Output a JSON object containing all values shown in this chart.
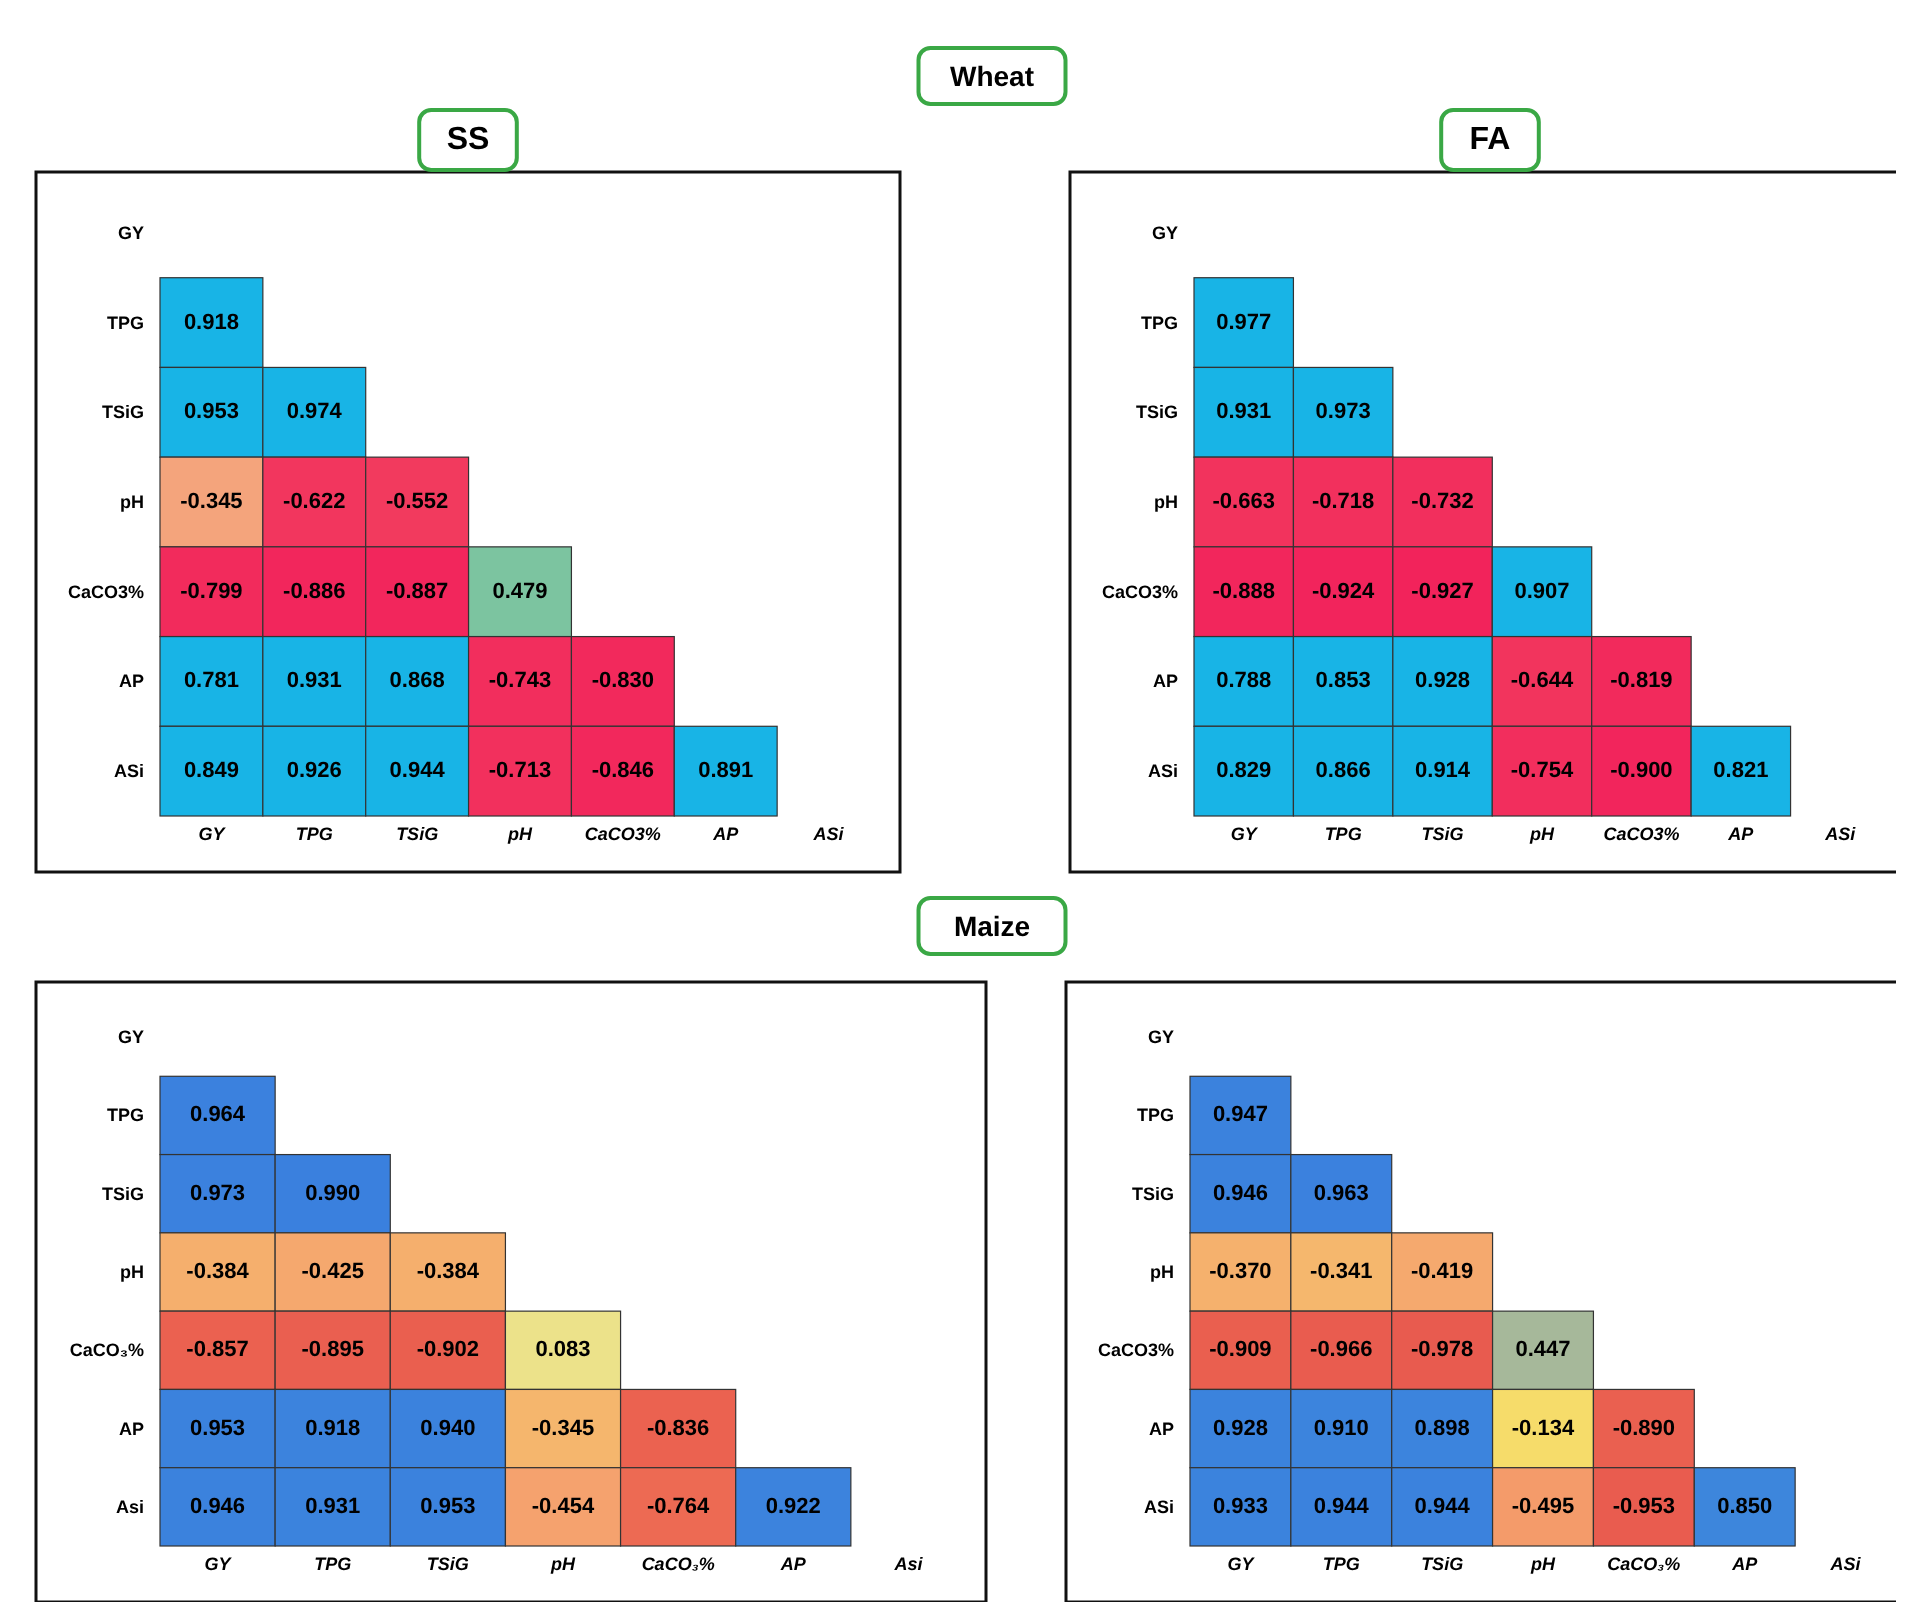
{
  "chart_data": [
    {
      "type": "heatmap",
      "title": "SS",
      "annotations": [
        "Wheat"
      ],
      "grid": false,
      "categories": [
        "GY",
        "TPG",
        "TSiG",
        "pH",
        "CaCO3%",
        "AP",
        "ASi"
      ],
      "y_categories": [
        "GY",
        "TPG",
        "TSiG",
        "pH",
        "CaCO3%",
        "AP",
        "ASi"
      ],
      "cells": [
        [
          null,
          null,
          null,
          null,
          null,
          null,
          null
        ],
        [
          0.918,
          null,
          null,
          null,
          null,
          null,
          null
        ],
        [
          0.953,
          0.974,
          null,
          null,
          null,
          null,
          null
        ],
        [
          -0.345,
          -0.622,
          -0.552,
          null,
          null,
          null,
          null
        ],
        [
          -0.799,
          -0.886,
          -0.887,
          0.479,
          null,
          null,
          null
        ],
        [
          0.781,
          0.931,
          0.868,
          -0.743,
          -0.83,
          null,
          null
        ],
        [
          0.849,
          0.926,
          0.944,
          -0.713,
          -0.846,
          0.891,
          null
        ]
      ],
      "cell_labels": [
        [
          null,
          null,
          null,
          null,
          null,
          null,
          null
        ],
        [
          "0.918",
          null,
          null,
          null,
          null,
          null,
          null
        ],
        [
          "0.953",
          "0.974",
          null,
          null,
          null,
          null,
          null
        ],
        [
          "-0.345",
          "-0.622",
          "-0.552",
          null,
          null,
          null,
          null
        ],
        [
          "-0.799",
          "-0.886",
          "-0.887",
          "0.479",
          null,
          null,
          null
        ],
        [
          "0.781",
          "0.931",
          "0.868",
          "-0.743",
          "-0.830",
          null,
          null
        ],
        [
          "0.849",
          "0.926",
          "0.944",
          "-0.713",
          "-0.846",
          "0.891",
          null
        ]
      ]
    },
    {
      "type": "heatmap",
      "title": "FA",
      "grid": false,
      "categories": [
        "GY",
        "TPG",
        "TSiG",
        "pH",
        "CaCO3%",
        "AP",
        "ASi"
      ],
      "y_categories": [
        "GY",
        "TPG",
        "TSiG",
        "pH",
        "CaCO3%",
        "AP",
        "ASi"
      ],
      "cells": [
        [
          null,
          null,
          null,
          null,
          null,
          null,
          null
        ],
        [
          0.977,
          null,
          null,
          null,
          null,
          null,
          null
        ],
        [
          0.931,
          0.973,
          null,
          null,
          null,
          null,
          null
        ],
        [
          -0.663,
          -0.718,
          -0.732,
          null,
          null,
          null,
          null
        ],
        [
          -0.888,
          -0.924,
          -0.927,
          0.907,
          null,
          null,
          null
        ],
        [
          0.788,
          0.853,
          0.928,
          -0.644,
          -0.819,
          null,
          null
        ],
        [
          0.829,
          0.866,
          0.914,
          -0.754,
          -0.9,
          0.821,
          null
        ]
      ],
      "cell_labels": [
        [
          null,
          null,
          null,
          null,
          null,
          null,
          null
        ],
        [
          "0.977",
          null,
          null,
          null,
          null,
          null,
          null
        ],
        [
          "0.931",
          "0.973",
          null,
          null,
          null,
          null,
          null
        ],
        [
          "-0.663",
          "-0.718",
          "-0.732",
          null,
          null,
          null,
          null
        ],
        [
          "-0.888",
          "-0.924",
          "-0.927",
          "0.907",
          null,
          null,
          null
        ],
        [
          "0.788",
          "0.853",
          "0.928",
          "-0.644",
          "-0.819",
          null,
          null
        ],
        [
          "0.829",
          "0.866",
          "0.914",
          "-0.754",
          "-0.900",
          "0.821",
          null
        ]
      ]
    },
    {
      "type": "heatmap",
      "annotations": [
        "Maize"
      ],
      "grid": false,
      "categories": [
        "GY",
        "TPG",
        "TSiG",
        "pH",
        "CaCO₃%",
        "AP",
        "Asi"
      ],
      "y_categories": [
        "GY",
        "TPG",
        "TSiG",
        "pH",
        "CaCO₃%",
        "AP",
        "Asi"
      ],
      "cells": [
        [
          null,
          null,
          null,
          null,
          null,
          null,
          null
        ],
        [
          0.964,
          null,
          null,
          null,
          null,
          null,
          null
        ],
        [
          0.973,
          0.99,
          null,
          null,
          null,
          null,
          null
        ],
        [
          -0.384,
          -0.425,
          -0.384,
          null,
          null,
          null,
          null
        ],
        [
          -0.857,
          -0.895,
          -0.902,
          0.083,
          null,
          null,
          null
        ],
        [
          0.953,
          0.918,
          0.94,
          -0.345,
          -0.836,
          null,
          null
        ],
        [
          0.946,
          0.931,
          0.953,
          -0.454,
          -0.764,
          0.922,
          null
        ]
      ],
      "cell_labels": [
        [
          null,
          null,
          null,
          null,
          null,
          null,
          null
        ],
        [
          "0.964",
          null,
          null,
          null,
          null,
          null,
          null
        ],
        [
          "0.973",
          "0.990",
          null,
          null,
          null,
          null,
          null
        ],
        [
          "-0.384",
          "-0.425",
          "-0.384",
          null,
          null,
          null,
          null
        ],
        [
          "-0.857",
          "-0.895",
          "-0.902",
          "0.083",
          null,
          null,
          null
        ],
        [
          "0.953",
          "0.918",
          "0.940",
          "-0.345",
          "-0.836",
          null,
          null
        ],
        [
          "0.946",
          "0.931",
          "0.953",
          "-0.454",
          "-0.764",
          "0.922",
          null
        ]
      ]
    },
    {
      "type": "heatmap",
      "grid": false,
      "categories": [
        "GY",
        "TPG",
        "TSiG",
        "pH",
        "CaCO₃%",
        "AP",
        "ASi"
      ],
      "y_categories": [
        "GY",
        "TPG",
        "TSiG",
        "pH",
        "CaCO3%",
        "AP",
        "ASi"
      ],
      "cells": [
        [
          null,
          null,
          null,
          null,
          null,
          null,
          null
        ],
        [
          0.947,
          null,
          null,
          null,
          null,
          null,
          null
        ],
        [
          0.946,
          0.963,
          null,
          null,
          null,
          null,
          null
        ],
        [
          -0.37,
          -0.341,
          -0.419,
          null,
          null,
          null,
          null
        ],
        [
          -0.909,
          -0.966,
          -0.978,
          0.447,
          null,
          null,
          null
        ],
        [
          0.928,
          0.91,
          0.898,
          -0.134,
          -0.89,
          null,
          null
        ],
        [
          0.933,
          0.944,
          0.944,
          -0.495,
          -0.953,
          0.85,
          null
        ]
      ],
      "cell_labels": [
        [
          null,
          null,
          null,
          null,
          null,
          null,
          null
        ],
        [
          "0.947",
          null,
          null,
          null,
          null,
          null,
          null
        ],
        [
          "0.946",
          "0.963",
          null,
          null,
          null,
          null,
          null
        ],
        [
          "-0.370",
          "-0.341",
          "-0.419",
          null,
          null,
          null,
          null
        ],
        [
          "-0.909",
          "-0.966",
          "-0.978",
          "0.447",
          null,
          null,
          null
        ],
        [
          "0.928",
          "0.910",
          "0.898",
          "-0.134",
          "-0.890",
          null,
          null
        ],
        [
          "0.933",
          "0.944",
          "0.944",
          "-0.495",
          "-0.953",
          "0.850",
          null
        ]
      ]
    }
  ]
}
